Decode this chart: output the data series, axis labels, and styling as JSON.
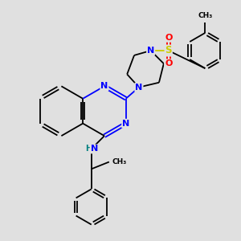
{
  "bg_color": "#e0e0e0",
  "atom_colors": {
    "N": "#0000ff",
    "O": "#ff0000",
    "S": "#cccc00",
    "C": "#000000",
    "H": "#008080"
  },
  "bond_lw": 1.3,
  "font_size": 8.0
}
